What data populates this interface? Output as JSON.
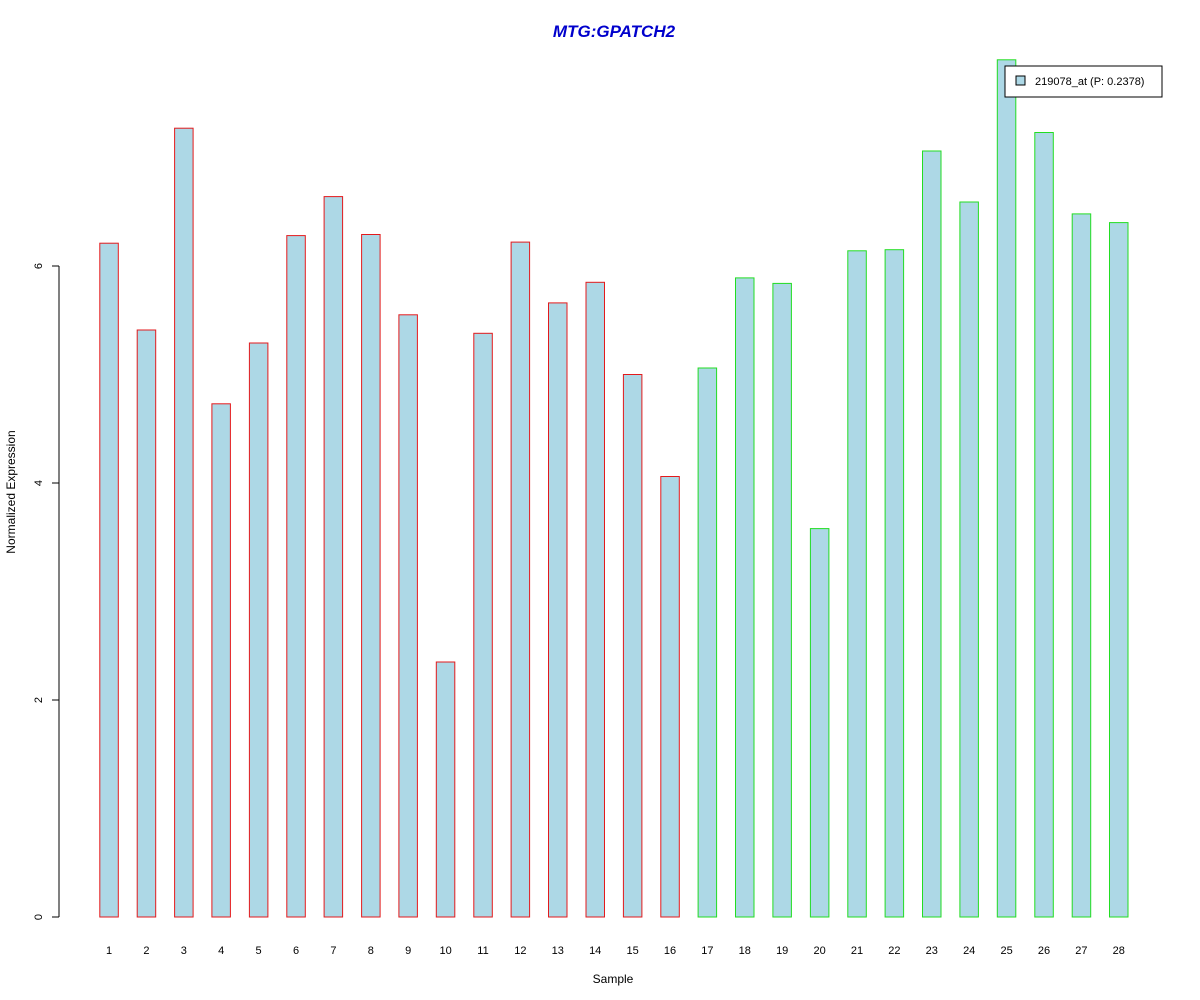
{
  "chart_data": {
    "type": "bar",
    "title": "MTG:GPATCH2",
    "xlabel": "Sample",
    "ylabel": "Normalized Expression",
    "categories": [
      "1",
      "2",
      "3",
      "4",
      "5",
      "6",
      "7",
      "8",
      "9",
      "10",
      "11",
      "12",
      "13",
      "14",
      "15",
      "16",
      "17",
      "18",
      "19",
      "20",
      "21",
      "22",
      "23",
      "24",
      "25",
      "26",
      "27",
      "28"
    ],
    "values": [
      6.21,
      5.41,
      7.27,
      4.73,
      5.29,
      6.28,
      6.64,
      6.29,
      5.55,
      2.35,
      5.38,
      6.22,
      5.66,
      5.85,
      5.0,
      4.06,
      5.06,
      5.89,
      5.84,
      3.58,
      6.14,
      6.15,
      7.06,
      6.59,
      7.9,
      7.23,
      6.48,
      6.4
    ],
    "group_border_colors": [
      "#e31a1c",
      "#e31a1c",
      "#e31a1c",
      "#e31a1c",
      "#e31a1c",
      "#e31a1c",
      "#e31a1c",
      "#e31a1c",
      "#e31a1c",
      "#e31a1c",
      "#e31a1c",
      "#e31a1c",
      "#e31a1c",
      "#e31a1c",
      "#e31a1c",
      "#e31a1c",
      "#22dd22",
      "#22dd22",
      "#22dd22",
      "#22dd22",
      "#22dd22",
      "#22dd22",
      "#22dd22",
      "#22dd22",
      "#22dd22",
      "#22dd22",
      "#22dd22",
      "#22dd22"
    ],
    "bar_fill": "#add8e6",
    "title_color": "#0000cc",
    "yticks": [
      0,
      2,
      4,
      6
    ],
    "ylim": [
      0,
      7.9
    ],
    "grid": false,
    "legend": {
      "label": "219078_at (P: 0.2378)",
      "position": "top-right"
    }
  }
}
